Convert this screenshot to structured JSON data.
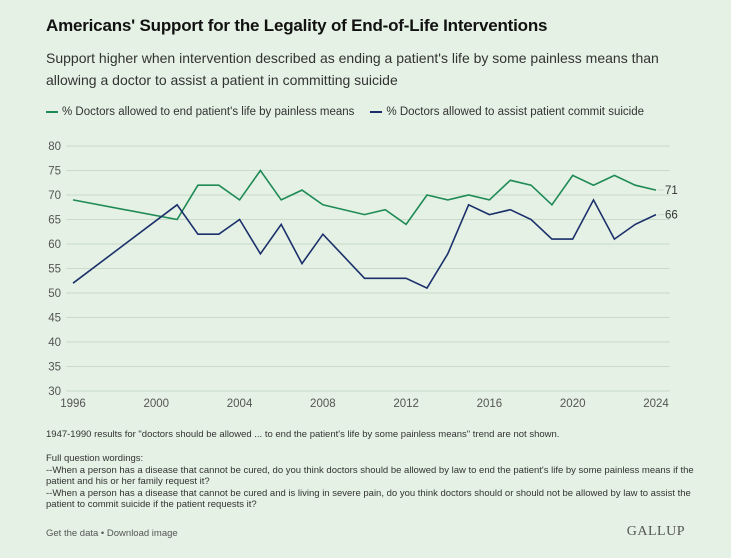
{
  "title": "Americans' Support for the Legality of End-of-Life Interventions",
  "subtitle": "Support higher when intervention described as ending a patient's life by some painless means than allowing a doctor to assist a patient in committing suicide",
  "legend": [
    {
      "label": "% Doctors allowed to end patient's life by painless means",
      "color": "#1e8a55"
    },
    {
      "label": "% Doctors allowed to assist patient commit suicide",
      "color": "#1b2f6b"
    }
  ],
  "chart_data": {
    "type": "line",
    "title": "Americans' Support for the Legality of End-of-Life Interventions",
    "xlabel": "",
    "ylabel": "",
    "xlim": [
      1996,
      2024
    ],
    "ylim": [
      30,
      80
    ],
    "yticks": [
      30,
      35,
      40,
      45,
      50,
      55,
      60,
      65,
      70,
      75,
      80
    ],
    "xticks": [
      1996,
      2000,
      2004,
      2008,
      2012,
      2016,
      2020,
      2024
    ],
    "grid": true,
    "legend_position": "top-left",
    "series": [
      {
        "name": "% Doctors allowed to end patient's life by painless means",
        "color": "#1e8a55",
        "x": [
          1996,
          2001,
          2002,
          2003,
          2004,
          2005,
          2006,
          2007,
          2008,
          2010,
          2011,
          2012,
          2013,
          2014,
          2015,
          2016,
          2017,
          2018,
          2019,
          2020,
          2021,
          2022,
          2023,
          2024
        ],
        "values": [
          69,
          65,
          72,
          72,
          69,
          75,
          69,
          71,
          68,
          66,
          67,
          64,
          70,
          69,
          70,
          69,
          73,
          72,
          68,
          74,
          72,
          74,
          72,
          71
        ],
        "end_label": "71"
      },
      {
        "name": "% Doctors allowed to assist patient commit suicide",
        "color": "#1b2f6b",
        "x": [
          1996,
          2001,
          2002,
          2003,
          2004,
          2005,
          2006,
          2007,
          2008,
          2010,
          2011,
          2012,
          2013,
          2014,
          2015,
          2016,
          2017,
          2018,
          2019,
          2020,
          2021,
          2022,
          2023,
          2024
        ],
        "values": [
          52,
          68,
          62,
          62,
          65,
          58,
          64,
          56,
          62,
          53,
          53,
          53,
          51,
          58,
          68,
          66,
          67,
          65,
          61,
          61,
          69,
          61,
          64,
          66
        ],
        "end_label": "66"
      }
    ]
  },
  "note": "1947-1990 results for \"doctors should be allowed ... to end the patient's life by some painless means\" trend are not shown.",
  "wordings": {
    "heading": "Full question wordings:",
    "q1": "--When a person has a disease that cannot be cured, do you think doctors should be allowed by law to end the patient's life by some painless means if the patient and his or her family request it?",
    "q2": "--When a person has a disease that cannot be cured and is living in severe pain, do you think doctors should or should not be allowed by law to assist the patient to commit suicide if the patient requests it?"
  },
  "footer": {
    "get_data": "Get the data",
    "separator": " • ",
    "download": "Download image",
    "logo": "GALLUP"
  }
}
